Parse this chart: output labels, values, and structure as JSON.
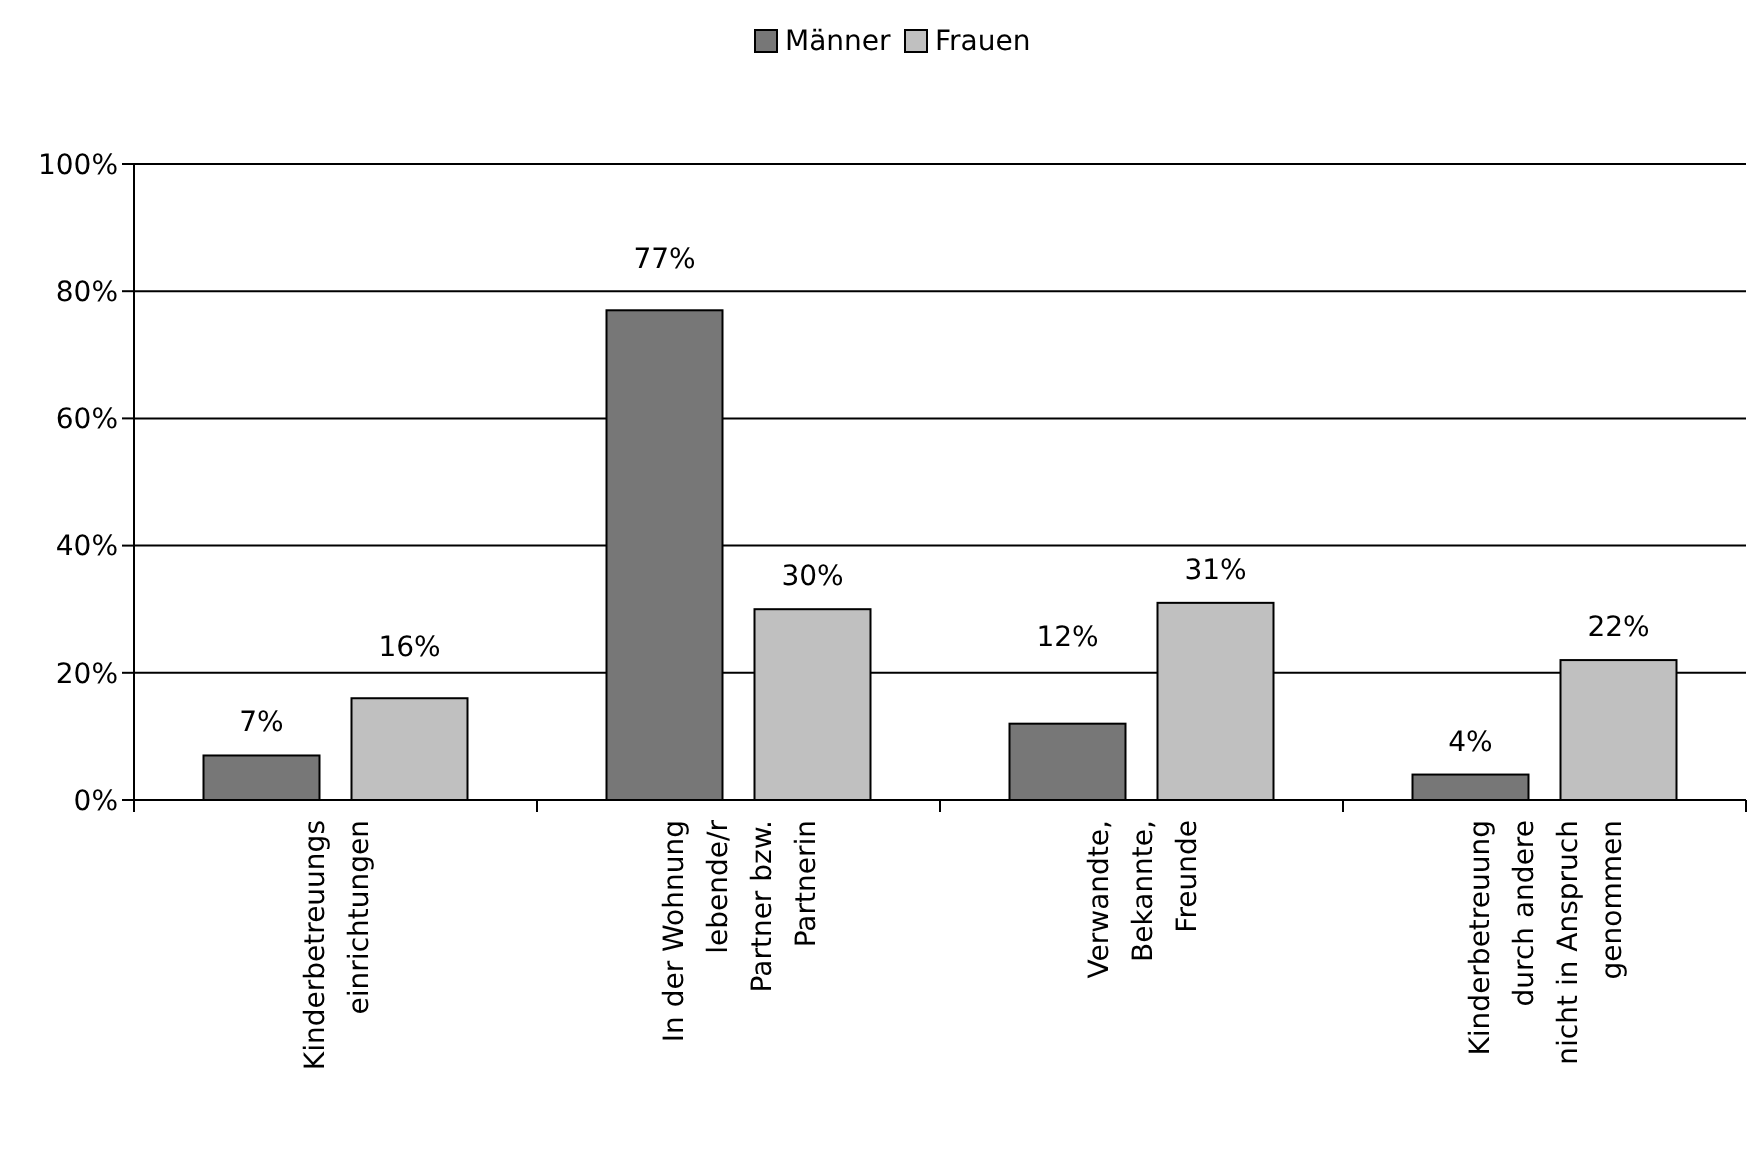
{
  "chart_data": {
    "type": "bar",
    "categories": [
      "Kinderbetreuungs\neinrichtungen",
      "In der Wohnung\nlebende/r\nPartner bzw.\nPartnerin",
      "Verwandte,\nBekannte,\nFreunde",
      "Kinderbetreuung\ndurch andere\nnicht in Anspruch\ngenommen"
    ],
    "series": [
      {
        "name": "Männer",
        "color": "#777777",
        "values": [
          7,
          77,
          12,
          4
        ],
        "value_labels": [
          "7%",
          "77%",
          "12%",
          "4%"
        ]
      },
      {
        "name": "Frauen",
        "color": "#c0c0c0",
        "values": [
          16,
          30,
          31,
          22
        ],
        "value_labels": [
          "16%",
          "30%",
          "31%",
          "22%"
        ]
      }
    ],
    "ylim": [
      0,
      100
    ],
    "yticks": [
      {
        "value": 0,
        "label": "0%"
      },
      {
        "value": 20,
        "label": "20%"
      },
      {
        "value": 40,
        "label": "40%"
      },
      {
        "value": 60,
        "label": "60%"
      },
      {
        "value": 80,
        "label": "80%"
      },
      {
        "value": 100,
        "label": "100%"
      }
    ],
    "grid": "y",
    "legend": "top"
  }
}
